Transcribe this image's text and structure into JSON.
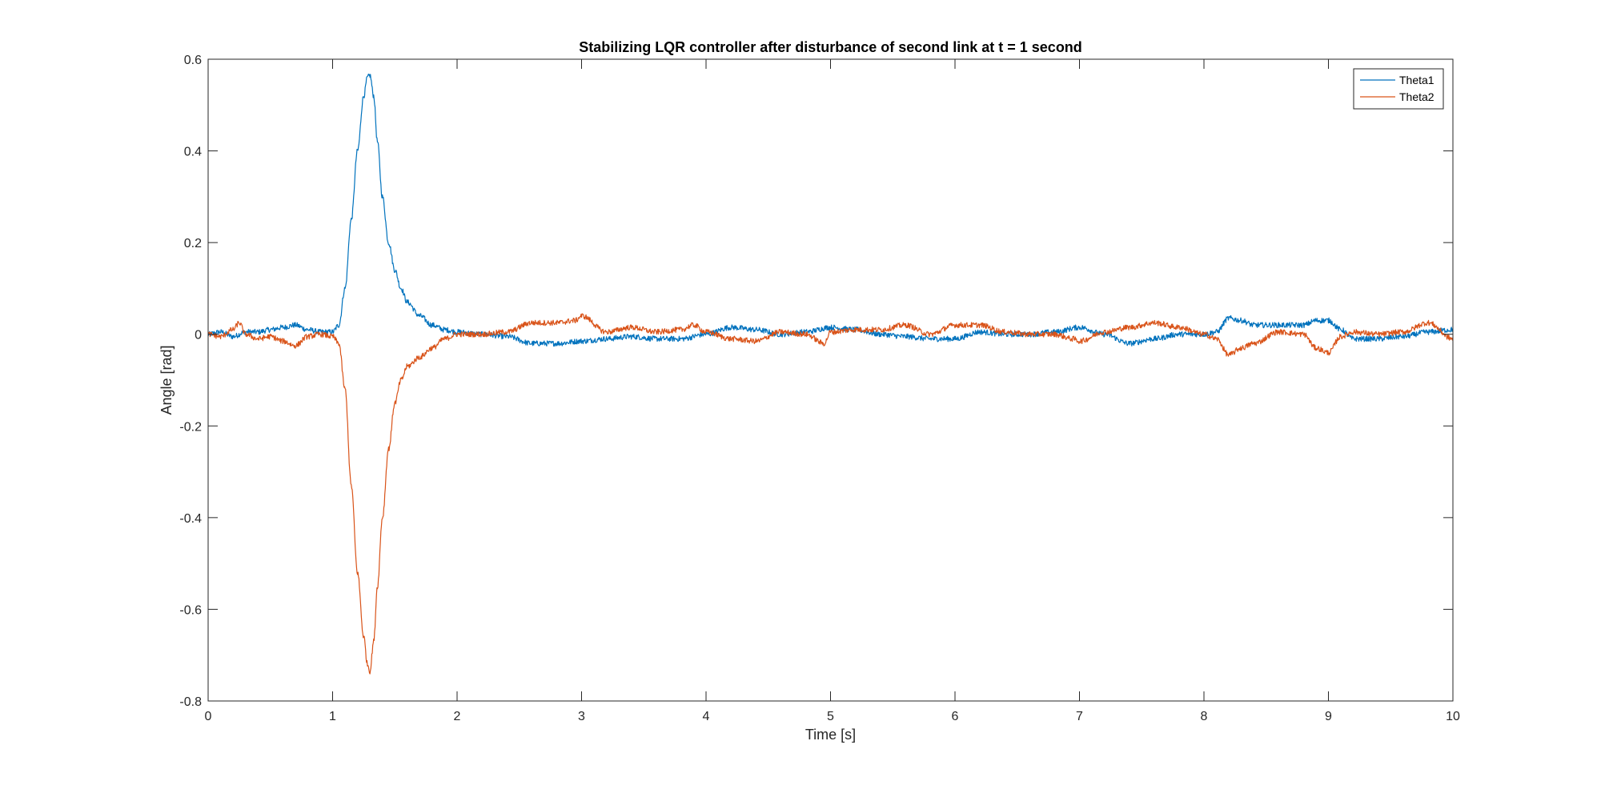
{
  "chart_data": {
    "type": "line",
    "title": "Stabilizing LQR controller after disturbance of second link at t = 1 second",
    "xlabel": "Time [s]",
    "ylabel": "Angle [rad]",
    "xlim": [
      0,
      10
    ],
    "ylim": [
      -0.8,
      0.6
    ],
    "xticks": [
      0,
      1,
      2,
      3,
      4,
      5,
      6,
      7,
      8,
      9,
      10
    ],
    "yticks": [
      0.6,
      0.4,
      0.2,
      0,
      -0.2,
      -0.4,
      -0.6,
      -0.8
    ],
    "xtick_labels": [
      "0",
      "1",
      "2",
      "3",
      "4",
      "5",
      "6",
      "7",
      "8",
      "9",
      "10"
    ],
    "ytick_labels": [
      "0.6",
      "0.4",
      "0.2",
      "0",
      "-0.2",
      "-0.4",
      "-0.6",
      "-0.8"
    ],
    "grid": false,
    "legend_position": "top-right",
    "series": [
      {
        "name": "Theta1",
        "color": "#0072BD",
        "x": [
          0.0,
          0.1,
          0.2,
          0.3,
          0.4,
          0.5,
          0.6,
          0.7,
          0.8,
          0.9,
          1.0,
          1.05,
          1.1,
          1.15,
          1.2,
          1.25,
          1.28,
          1.3,
          1.33,
          1.36,
          1.4,
          1.45,
          1.5,
          1.55,
          1.6,
          1.7,
          1.8,
          1.9,
          2.0,
          2.2,
          2.4,
          2.6,
          2.8,
          3.0,
          3.2,
          3.4,
          3.6,
          3.8,
          4.0,
          4.2,
          4.4,
          4.6,
          4.8,
          5.0,
          5.2,
          5.4,
          5.6,
          5.8,
          6.0,
          6.2,
          6.4,
          6.6,
          6.8,
          7.0,
          7.2,
          7.4,
          7.6,
          7.8,
          8.0,
          8.1,
          8.2,
          8.3,
          8.4,
          8.6,
          8.8,
          8.9,
          9.0,
          9.1,
          9.2,
          9.4,
          9.6,
          9.8,
          10.0
        ],
        "values": [
          0.0,
          0.005,
          -0.005,
          0.005,
          0.005,
          0.01,
          0.015,
          0.02,
          0.01,
          0.005,
          0.005,
          0.02,
          0.1,
          0.25,
          0.4,
          0.52,
          0.56,
          0.565,
          0.52,
          0.42,
          0.3,
          0.2,
          0.14,
          0.1,
          0.07,
          0.04,
          0.02,
          0.01,
          0.005,
          0.0,
          -0.005,
          -0.02,
          -0.02,
          -0.015,
          -0.01,
          -0.005,
          -0.01,
          -0.01,
          0.0,
          0.015,
          0.01,
          0.0,
          0.005,
          0.015,
          0.01,
          0.0,
          -0.005,
          -0.01,
          -0.01,
          0.005,
          0.0,
          0.0,
          0.005,
          0.015,
          0.0,
          -0.02,
          -0.01,
          0.0,
          0.0,
          0.005,
          0.035,
          0.03,
          0.02,
          0.02,
          0.02,
          0.03,
          0.03,
          0.01,
          -0.01,
          -0.01,
          -0.005,
          0.005,
          0.01
        ]
      },
      {
        "name": "Theta2",
        "color": "#D95319",
        "x": [
          0.0,
          0.1,
          0.2,
          0.25,
          0.3,
          0.4,
          0.5,
          0.6,
          0.7,
          0.8,
          0.9,
          1.0,
          1.05,
          1.1,
          1.15,
          1.2,
          1.25,
          1.28,
          1.3,
          1.33,
          1.36,
          1.4,
          1.45,
          1.5,
          1.55,
          1.6,
          1.7,
          1.8,
          1.9,
          2.0,
          2.2,
          2.4,
          2.6,
          2.8,
          2.95,
          3.0,
          3.2,
          3.4,
          3.6,
          3.8,
          3.9,
          4.0,
          4.2,
          4.4,
          4.6,
          4.8,
          4.95,
          5.0,
          5.2,
          5.4,
          5.6,
          5.8,
          6.0,
          6.2,
          6.4,
          6.6,
          6.8,
          6.95,
          7.0,
          7.2,
          7.4,
          7.6,
          7.8,
          8.0,
          8.1,
          8.2,
          8.3,
          8.4,
          8.6,
          8.8,
          8.9,
          9.0,
          9.1,
          9.2,
          9.4,
          9.6,
          9.8,
          10.0
        ],
        "values": [
          0.0,
          -0.005,
          0.01,
          0.025,
          0.0,
          -0.01,
          -0.005,
          -0.015,
          -0.025,
          -0.005,
          0.0,
          -0.005,
          -0.02,
          -0.12,
          -0.33,
          -0.52,
          -0.66,
          -0.72,
          -0.735,
          -0.67,
          -0.55,
          -0.4,
          -0.25,
          -0.15,
          -0.1,
          -0.07,
          -0.05,
          -0.03,
          -0.01,
          0.0,
          0.0,
          0.005,
          0.025,
          0.025,
          0.03,
          0.04,
          0.005,
          0.015,
          0.005,
          0.01,
          0.02,
          0.005,
          -0.01,
          -0.015,
          0.005,
          0.0,
          -0.02,
          0.005,
          0.01,
          0.01,
          0.02,
          0.0,
          0.02,
          0.02,
          0.005,
          0.0,
          0.0,
          -0.01,
          -0.015,
          0.005,
          0.015,
          0.025,
          0.015,
          0.0,
          -0.01,
          -0.045,
          -0.03,
          -0.02,
          0.005,
          0.0,
          -0.03,
          -0.04,
          -0.005,
          0.005,
          0.0,
          0.005,
          0.025,
          -0.01
        ]
      }
    ]
  }
}
